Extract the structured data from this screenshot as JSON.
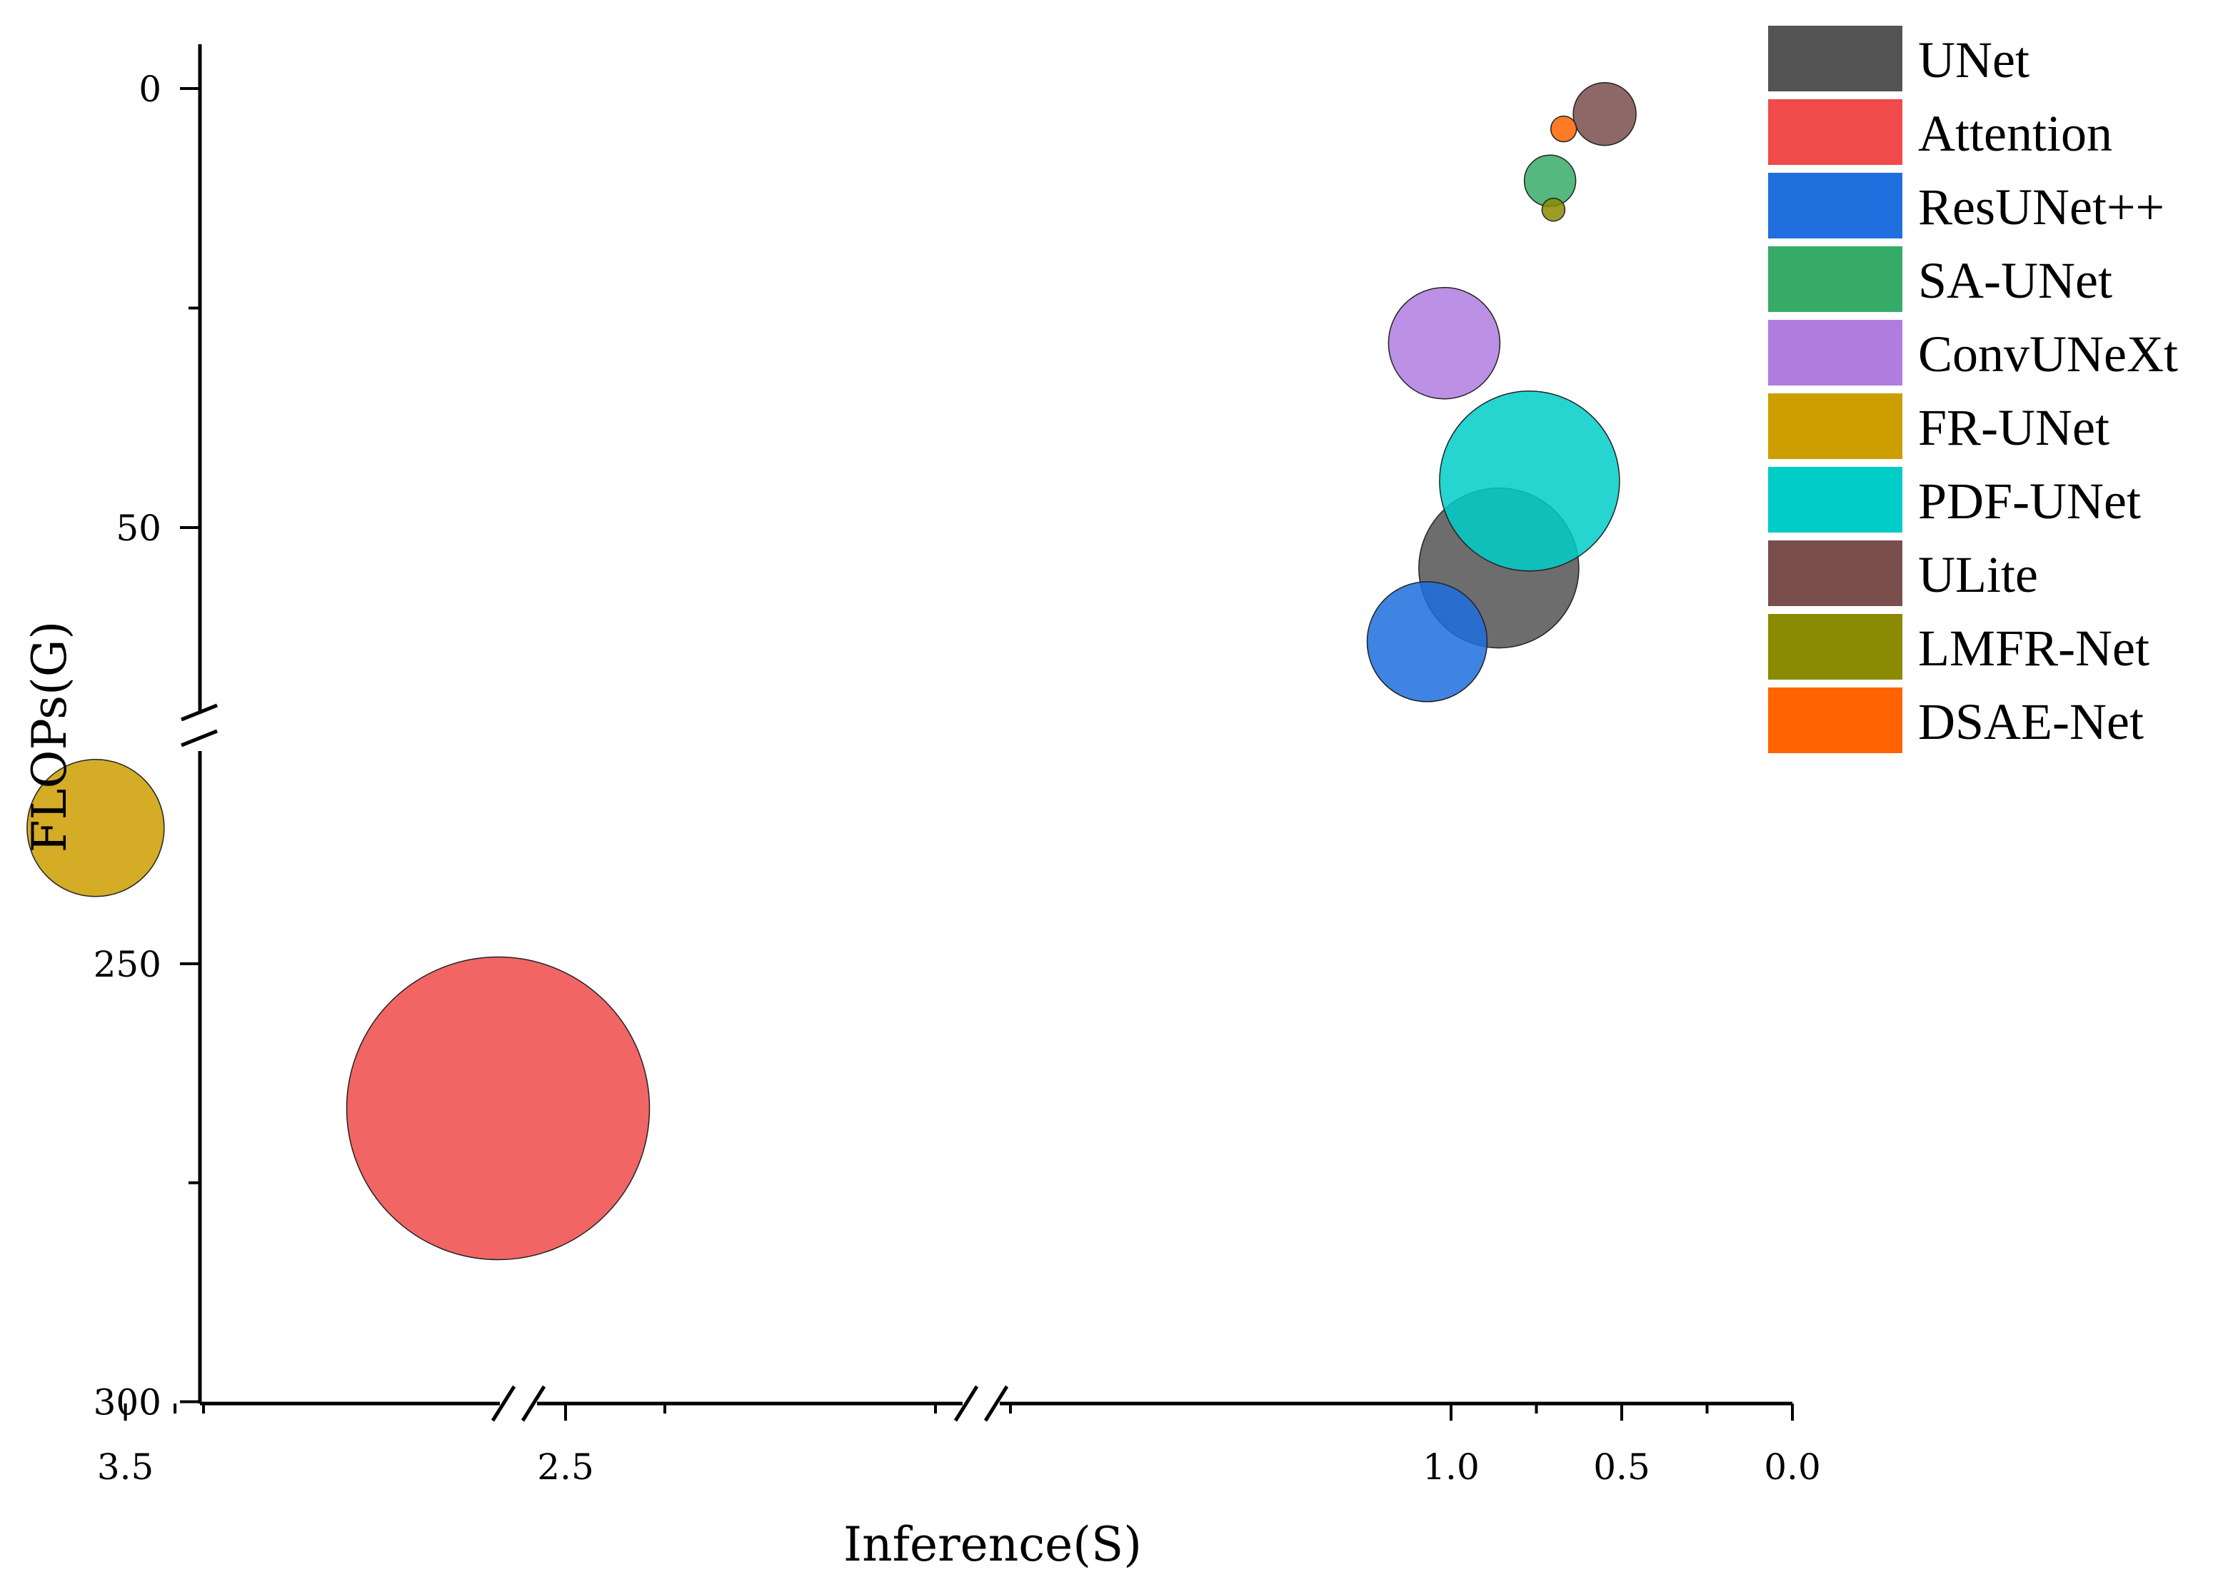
{
  "chart_data": {
    "type": "scatter",
    "variant": "bubble",
    "xlabel": "Inference(S)",
    "ylabel": "FLOPs(G)",
    "x_axis": {
      "direction": "reversed",
      "broken": true,
      "tick_labels": [
        "3.5",
        "2.5",
        "1.0",
        "0.5",
        "0.0"
      ],
      "tick_values": [
        3.5,
        2.5,
        1.0,
        0.5,
        0.0
      ]
    },
    "y_axis": {
      "direction": "inverted",
      "broken": true,
      "tick_labels": [
        "0",
        "50",
        "250",
        "300"
      ],
      "tick_values": [
        0,
        50,
        250,
        300
      ]
    },
    "grid": false,
    "legend_position": "top-right",
    "series": [
      {
        "name": "UNet",
        "color": "#545454",
        "x": 0.86,
        "y": 54.6,
        "size": 56
      },
      {
        "name": "Attention",
        "color": "#f04a4a",
        "x": 2.67,
        "y": 266.5,
        "size": 106
      },
      {
        "name": "ResUNet++",
        "color": "#1f6fde",
        "x": 1.07,
        "y": 63.0,
        "size": 42
      },
      {
        "name": "SA-UNet",
        "color": "#36ab68",
        "x": 0.71,
        "y": 10.5,
        "size": 18
      },
      {
        "name": "ConvUNeXt",
        "color": "#b07ce0",
        "x": 1.02,
        "y": 29.0,
        "size": 39
      },
      {
        "name": "FR-UNet",
        "color": "#cc9e00",
        "x": 3.65,
        "y": 234.5,
        "size": 48
      },
      {
        "name": "PDF-UNet",
        "color": "#00ccc8",
        "x": 0.77,
        "y": 44.7,
        "size": 63
      },
      {
        "name": "ULite",
        "color": "#7a4e4c",
        "x": 0.55,
        "y": 2.9,
        "size": 22
      },
      {
        "name": "LMFR-Net",
        "color": "#8b8b00",
        "x": 0.7,
        "y": 13.8,
        "size": 8
      },
      {
        "name": "DSAE-Net",
        "color": "#ff6400",
        "x": 0.67,
        "y": 4.6,
        "size": 9
      }
    ]
  }
}
